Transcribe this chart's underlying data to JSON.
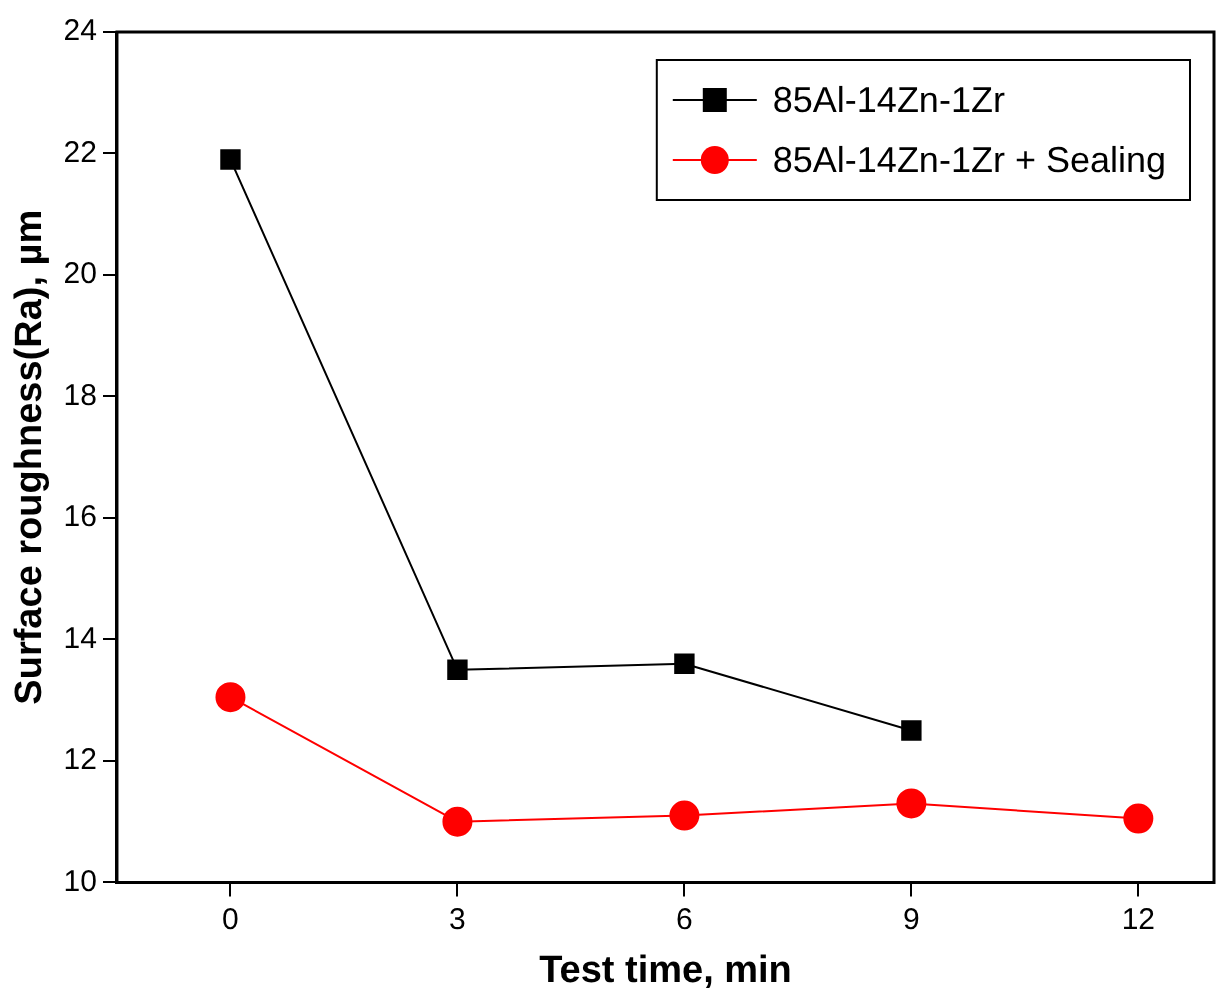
{
  "chart_data": {
    "type": "line",
    "xlabel": "Test time, min",
    "ylabel": "Surface roughness(Ra), µm",
    "xlim": [
      -1.5,
      13
    ],
    "xticks": [
      0,
      3,
      6,
      9,
      12
    ],
    "ylim": [
      10,
      24
    ],
    "yticks": [
      10,
      12,
      14,
      16,
      18,
      20,
      22,
      24
    ],
    "grid": false,
    "legend": "top right",
    "line_style": "solid",
    "series": [
      {
        "name": "85Al-14Zn-1Zr",
        "color": "#000000",
        "marker": "square",
        "x": [
          0,
          3,
          6,
          9
        ],
        "values": [
          21.9,
          13.5,
          13.6,
          12.5
        ]
      },
      {
        "name": "85Al-14Zn-1Zr + Sealing",
        "color": "#ff0000",
        "marker": "circle",
        "x": [
          0,
          3,
          6,
          9,
          12
        ],
        "values": [
          13.05,
          11.0,
          11.1,
          11.3,
          11.05
        ]
      }
    ]
  }
}
